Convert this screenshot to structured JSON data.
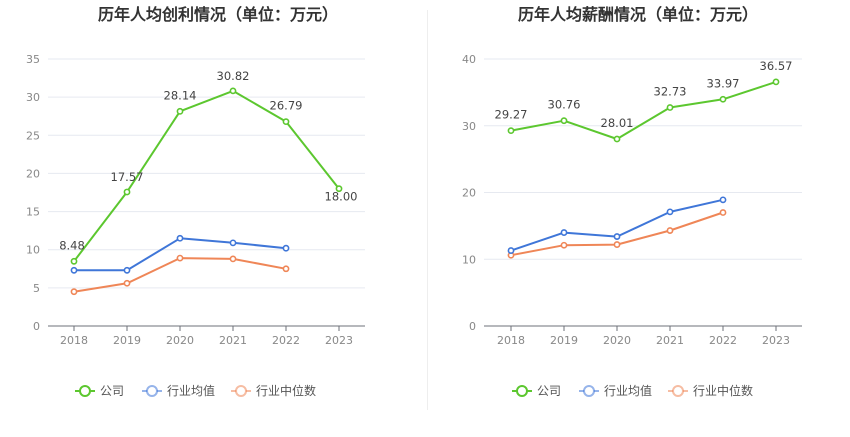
{
  "chart_data": [
    {
      "type": "line",
      "title": "历年人均创利情况（单位：万元）",
      "categories": [
        "2018",
        "2019",
        "2020",
        "2021",
        "2022",
        "2023"
      ],
      "ylim": [
        0,
        35
      ],
      "yticks": [
        "0",
        "5",
        "10",
        "15",
        "20",
        "25",
        "30",
        "35"
      ],
      "grid": true,
      "legend_position": "bottom",
      "series": [
        {
          "name": "公司",
          "color": "#5cc72f",
          "values": [
            8.48,
            17.57,
            28.14,
            30.82,
            26.79,
            18.0
          ],
          "labels": [
            "8.48",
            "17.57",
            "28.14",
            "30.82",
            "26.79",
            "18.00"
          ]
        },
        {
          "name": "行业均值",
          "color": "#3f76d8",
          "values": [
            7.3,
            7.3,
            11.5,
            10.9,
            10.2,
            null
          ]
        },
        {
          "name": "行业中位数",
          "color": "#ef8657",
          "values": [
            4.5,
            5.6,
            8.9,
            8.8,
            7.5,
            null
          ]
        }
      ]
    },
    {
      "type": "line",
      "title": "历年人均薪酬情况（单位：万元）",
      "categories": [
        "2018",
        "2019",
        "2020",
        "2021",
        "2022",
        "2023"
      ],
      "ylim": [
        0,
        40
      ],
      "yticks": [
        "0",
        "10",
        "20",
        "30",
        "40"
      ],
      "grid": true,
      "legend_position": "bottom",
      "series": [
        {
          "name": "公司",
          "color": "#5cc72f",
          "values": [
            29.27,
            30.76,
            28.01,
            32.73,
            33.97,
            36.57
          ],
          "labels": [
            "29.27",
            "30.76",
            "28.01",
            "32.73",
            "33.97",
            "36.57"
          ]
        },
        {
          "name": "行业均值",
          "color": "#3f76d8",
          "values": [
            11.3,
            14.0,
            13.4,
            17.1,
            18.9,
            null
          ]
        },
        {
          "name": "行业中位数",
          "color": "#ef8657",
          "values": [
            10.6,
            12.1,
            12.2,
            14.3,
            17.0,
            null
          ]
        }
      ]
    }
  ]
}
